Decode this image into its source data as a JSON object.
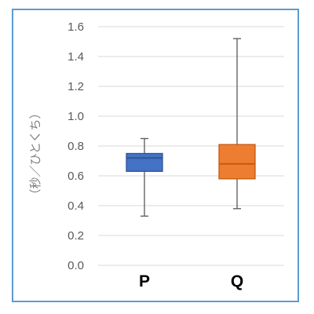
{
  "chart_data": {
    "type": "box",
    "ylabel": "（秒／ひとくち）",
    "ylim": [
      0,
      1.6
    ],
    "y_ticks": [
      "0.0",
      "0.2",
      "0.4",
      "0.6",
      "0.8",
      "1.0",
      "1.2",
      "1.4",
      "1.6"
    ],
    "grid": true,
    "categories": [
      "P",
      "Q"
    ],
    "boxes": [
      {
        "name": "P",
        "min": 0.33,
        "q1": 0.63,
        "median": 0.72,
        "q3": 0.75,
        "max": 0.85,
        "fill": "#4472c4",
        "stroke": "#2f5597"
      },
      {
        "name": "Q",
        "min": 0.38,
        "q1": 0.58,
        "median": 0.68,
        "q3": 0.81,
        "max": 1.52,
        "fill": "#ed7d31",
        "stroke": "#c55a11"
      }
    ]
  },
  "colors": {
    "frame": "#5b9bd5",
    "grid": "#d9d9d9",
    "whisker": "#595959"
  }
}
